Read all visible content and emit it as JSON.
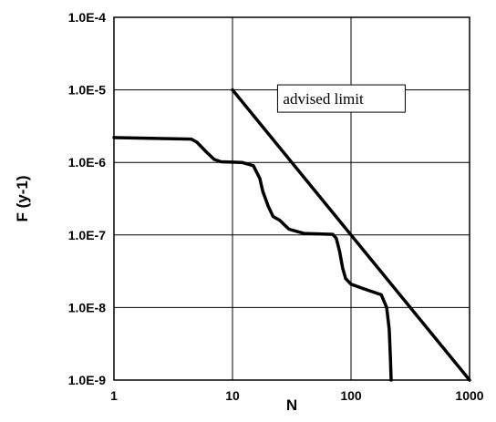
{
  "chart_data": {
    "type": "line",
    "title": "",
    "xlabel": "N",
    "ylabel": "F (y-1)",
    "x_scale": "log",
    "y_scale": "log",
    "xlim": [
      1,
      1000
    ],
    "ylim": [
      1e-09,
      0.0001
    ],
    "grid": true,
    "x_ticks": [
      1,
      10,
      100,
      1000
    ],
    "x_tick_labels": [
      "1",
      "10",
      "100",
      "1000"
    ],
    "y_ticks": [
      0.0001,
      1e-05,
      1e-06,
      1e-07,
      1e-08,
      1e-09
    ],
    "y_tick_labels": [
      "1.0E-4",
      "1.0E-5",
      "1.0E-6",
      "1.0E-7",
      "1.0E-8",
      "1.0E-9"
    ],
    "series": [
      {
        "name": "advised limit",
        "x": [
          10,
          1000
        ],
        "y": [
          1e-05,
          1e-09
        ]
      },
      {
        "x": [
          1,
          4.5,
          5,
          6,
          7,
          8,
          12,
          15,
          17,
          18,
          20,
          22,
          25,
          30,
          40,
          70,
          75,
          80,
          85,
          90,
          100,
          130,
          180,
          200,
          210,
          215,
          218
        ],
        "y": [
          2.2e-06,
          2.1e-06,
          1.9e-06,
          1.4e-06,
          1.1e-06,
          1.02e-06,
          1e-06,
          9e-07,
          6e-07,
          4e-07,
          2.5e-07,
          1.8e-07,
          1.6e-07,
          1.2e-07,
          1.05e-07,
          1.02e-07,
          9e-08,
          6e-08,
          3.5e-08,
          2.5e-08,
          2.1e-08,
          1.8e-08,
          1.5e-08,
          1e-08,
          5e-09,
          2e-09,
          1e-09
        ]
      }
    ],
    "annotations": [
      {
        "text": "advised limit",
        "x": 24,
        "y": 7.6e-06
      }
    ]
  },
  "colors": {
    "line": "#000000",
    "grid": "#000000",
    "background": "#ffffff"
  }
}
